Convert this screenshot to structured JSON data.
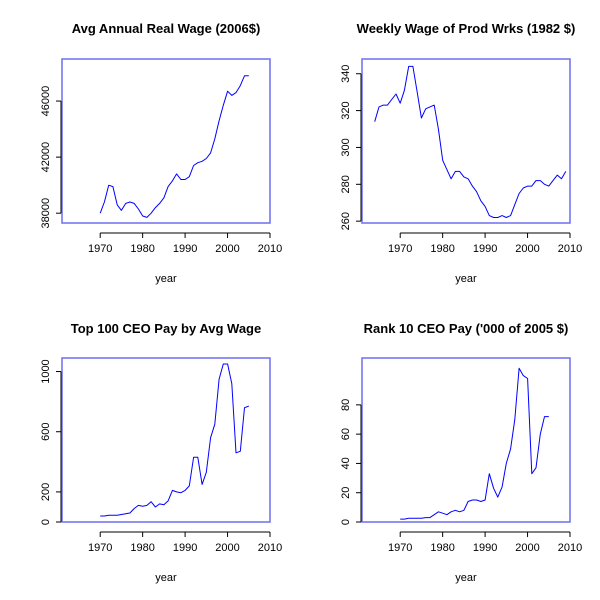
{
  "style": {
    "line_color": "#0000ff",
    "frame_color": "#7777ee",
    "axis_color": "#000000",
    "background": "#ffffff"
  },
  "chart_data": [
    {
      "type": "line",
      "title": "Avg Annual Real Wage (2006$)",
      "xlabel": "year",
      "ylabel": "",
      "xlim": [
        1961,
        2010
      ],
      "ylim": [
        37300,
        49000
      ],
      "xticks": [
        1970,
        1980,
        1990,
        2000,
        2010
      ],
      "yticks": [
        38000,
        42000,
        46000
      ],
      "series": [
        {
          "x": [
            1970,
            1971,
            1972,
            1973,
            1974,
            1975,
            1976,
            1977,
            1978,
            1979,
            1980,
            1981,
            1982,
            1983,
            1984,
            1985,
            1986,
            1987,
            1988,
            1989,
            1990,
            1991,
            1992,
            1993,
            1994,
            1995,
            1996,
            1997,
            1998,
            1999,
            2000,
            2001,
            2002,
            2003,
            2004,
            2005
          ],
          "y": [
            38000,
            38800,
            40000,
            39900,
            38600,
            38200,
            38700,
            38800,
            38700,
            38300,
            37800,
            37700,
            38000,
            38400,
            38700,
            39100,
            39900,
            40300,
            40800,
            40400,
            40400,
            40600,
            41400,
            41600,
            41700,
            41900,
            42300,
            43300,
            44600,
            45700,
            46700,
            46400,
            46600,
            47100,
            47800,
            47800
          ]
        }
      ]
    },
    {
      "type": "line",
      "title": "Weekly Wage of Prod Wrks (1982 $)",
      "xlabel": "year",
      "ylabel": "",
      "xlim": [
        1961,
        2010
      ],
      "ylim": [
        259,
        348
      ],
      "xticks": [
        1970,
        1980,
        1990,
        2000,
        2010
      ],
      "yticks": [
        260,
        280,
        300,
        320,
        340
      ],
      "series": [
        {
          "x": [
            1964,
            1965,
            1966,
            1967,
            1968,
            1969,
            1970,
            1971,
            1972,
            1973,
            1974,
            1975,
            1976,
            1977,
            1978,
            1979,
            1980,
            1981,
            1982,
            1983,
            1984,
            1985,
            1986,
            1987,
            1988,
            1989,
            1990,
            1991,
            1992,
            1993,
            1994,
            1995,
            1996,
            1997,
            1998,
            1999,
            2000,
            2001,
            2002,
            2003,
            2004,
            2005,
            2006,
            2007,
            2008,
            2009
          ],
          "y": [
            314,
            322,
            323,
            323,
            326,
            329,
            324,
            331,
            344,
            344,
            330,
            316,
            321,
            322,
            323,
            310,
            293,
            288,
            283,
            287,
            287,
            284,
            283,
            279,
            276,
            271,
            268,
            263,
            262,
            262,
            263,
            262,
            263,
            269,
            275,
            278,
            279,
            279,
            282,
            282,
            280,
            279,
            282,
            285,
            283,
            287
          ]
        }
      ]
    },
    {
      "type": "line",
      "title": "Top 100 CEO Pay by Avg Wage",
      "xlabel": "year",
      "ylabel": "",
      "xlim": [
        1961,
        2010
      ],
      "ylim": [
        0,
        1090
      ],
      "xticks": [
        1970,
        1980,
        1990,
        2000,
        2010
      ],
      "yticks": [
        0,
        200,
        600,
        1000
      ],
      "series": [
        {
          "x": [
            1970,
            1971,
            1972,
            1973,
            1974,
            1975,
            1976,
            1977,
            1978,
            1979,
            1980,
            1981,
            1982,
            1983,
            1984,
            1985,
            1986,
            1987,
            1988,
            1989,
            1990,
            1991,
            1992,
            1993,
            1994,
            1995,
            1996,
            1997,
            1998,
            1999,
            2000,
            2001,
            2002,
            2003,
            2004,
            2005
          ],
          "y": [
            40,
            40,
            45,
            45,
            45,
            50,
            55,
            60,
            90,
            110,
            105,
            110,
            135,
            100,
            120,
            115,
            140,
            210,
            200,
            195,
            210,
            240,
            430,
            430,
            250,
            330,
            560,
            650,
            950,
            1050,
            1050,
            920,
            460,
            470,
            760,
            770
          ]
        }
      ]
    },
    {
      "type": "line",
      "title": "Rank 10 CEO Pay ('000 of 2005 $)",
      "xlabel": "year",
      "ylabel": "",
      "xlim": [
        1961,
        2010
      ],
      "ylim": [
        0,
        112
      ],
      "xticks": [
        1970,
        1980,
        1990,
        2000,
        2010
      ],
      "yticks": [
        0,
        20,
        40,
        60,
        80
      ],
      "series": [
        {
          "x": [
            1970,
            1971,
            1972,
            1973,
            1974,
            1975,
            1976,
            1977,
            1978,
            1979,
            1980,
            1981,
            1982,
            1983,
            1984,
            1985,
            1986,
            1987,
            1988,
            1989,
            1990,
            1991,
            1992,
            1993,
            1994,
            1995,
            1996,
            1997,
            1998,
            1999,
            2000,
            2001,
            2002,
            2003,
            2004,
            2005
          ],
          "y": [
            2,
            2,
            2.5,
            2.5,
            2.5,
            2.5,
            3,
            3,
            5,
            7,
            6,
            5,
            7,
            8,
            7,
            8,
            14,
            15,
            15,
            14,
            15,
            33,
            23,
            17,
            24,
            40,
            50,
            70,
            105,
            100,
            98,
            33,
            37,
            60,
            72,
            72
          ]
        }
      ]
    }
  ]
}
